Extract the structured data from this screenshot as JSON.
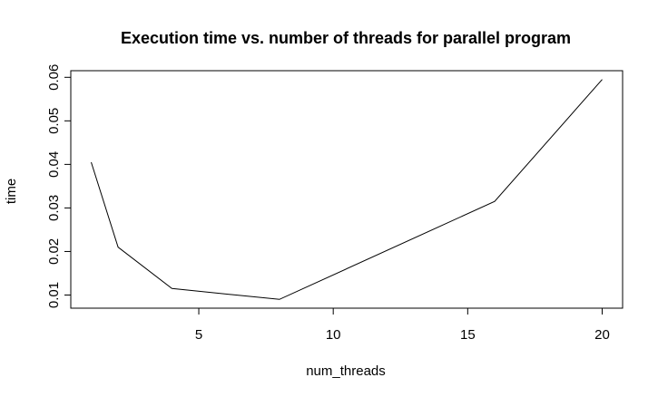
{
  "chart_data": {
    "type": "line",
    "title": "Execution time vs. number of threads for parallel program",
    "xlabel": "num_threads",
    "ylabel": "time",
    "x": [
      1,
      2,
      4,
      8,
      16,
      20
    ],
    "series": [
      {
        "values": [
          0.0405,
          0.021,
          0.0115,
          0.009,
          0.0315,
          0.0595
        ]
      }
    ],
    "xlim": [
      0.24,
      20.76
    ],
    "ylim": [
      0.00698,
      0.06152
    ],
    "x_ticks": [
      5,
      10,
      15,
      20
    ],
    "x_tick_labels": [
      "5",
      "10",
      "15",
      "20"
    ],
    "y_ticks": [
      0.01,
      0.02,
      0.03,
      0.04,
      0.05,
      0.06
    ],
    "y_tick_labels": [
      "0.01",
      "0.02",
      "0.03",
      "0.04",
      "0.05",
      "0.06"
    ],
    "grid": false,
    "legend": "none",
    "line_color": "#000000"
  }
}
